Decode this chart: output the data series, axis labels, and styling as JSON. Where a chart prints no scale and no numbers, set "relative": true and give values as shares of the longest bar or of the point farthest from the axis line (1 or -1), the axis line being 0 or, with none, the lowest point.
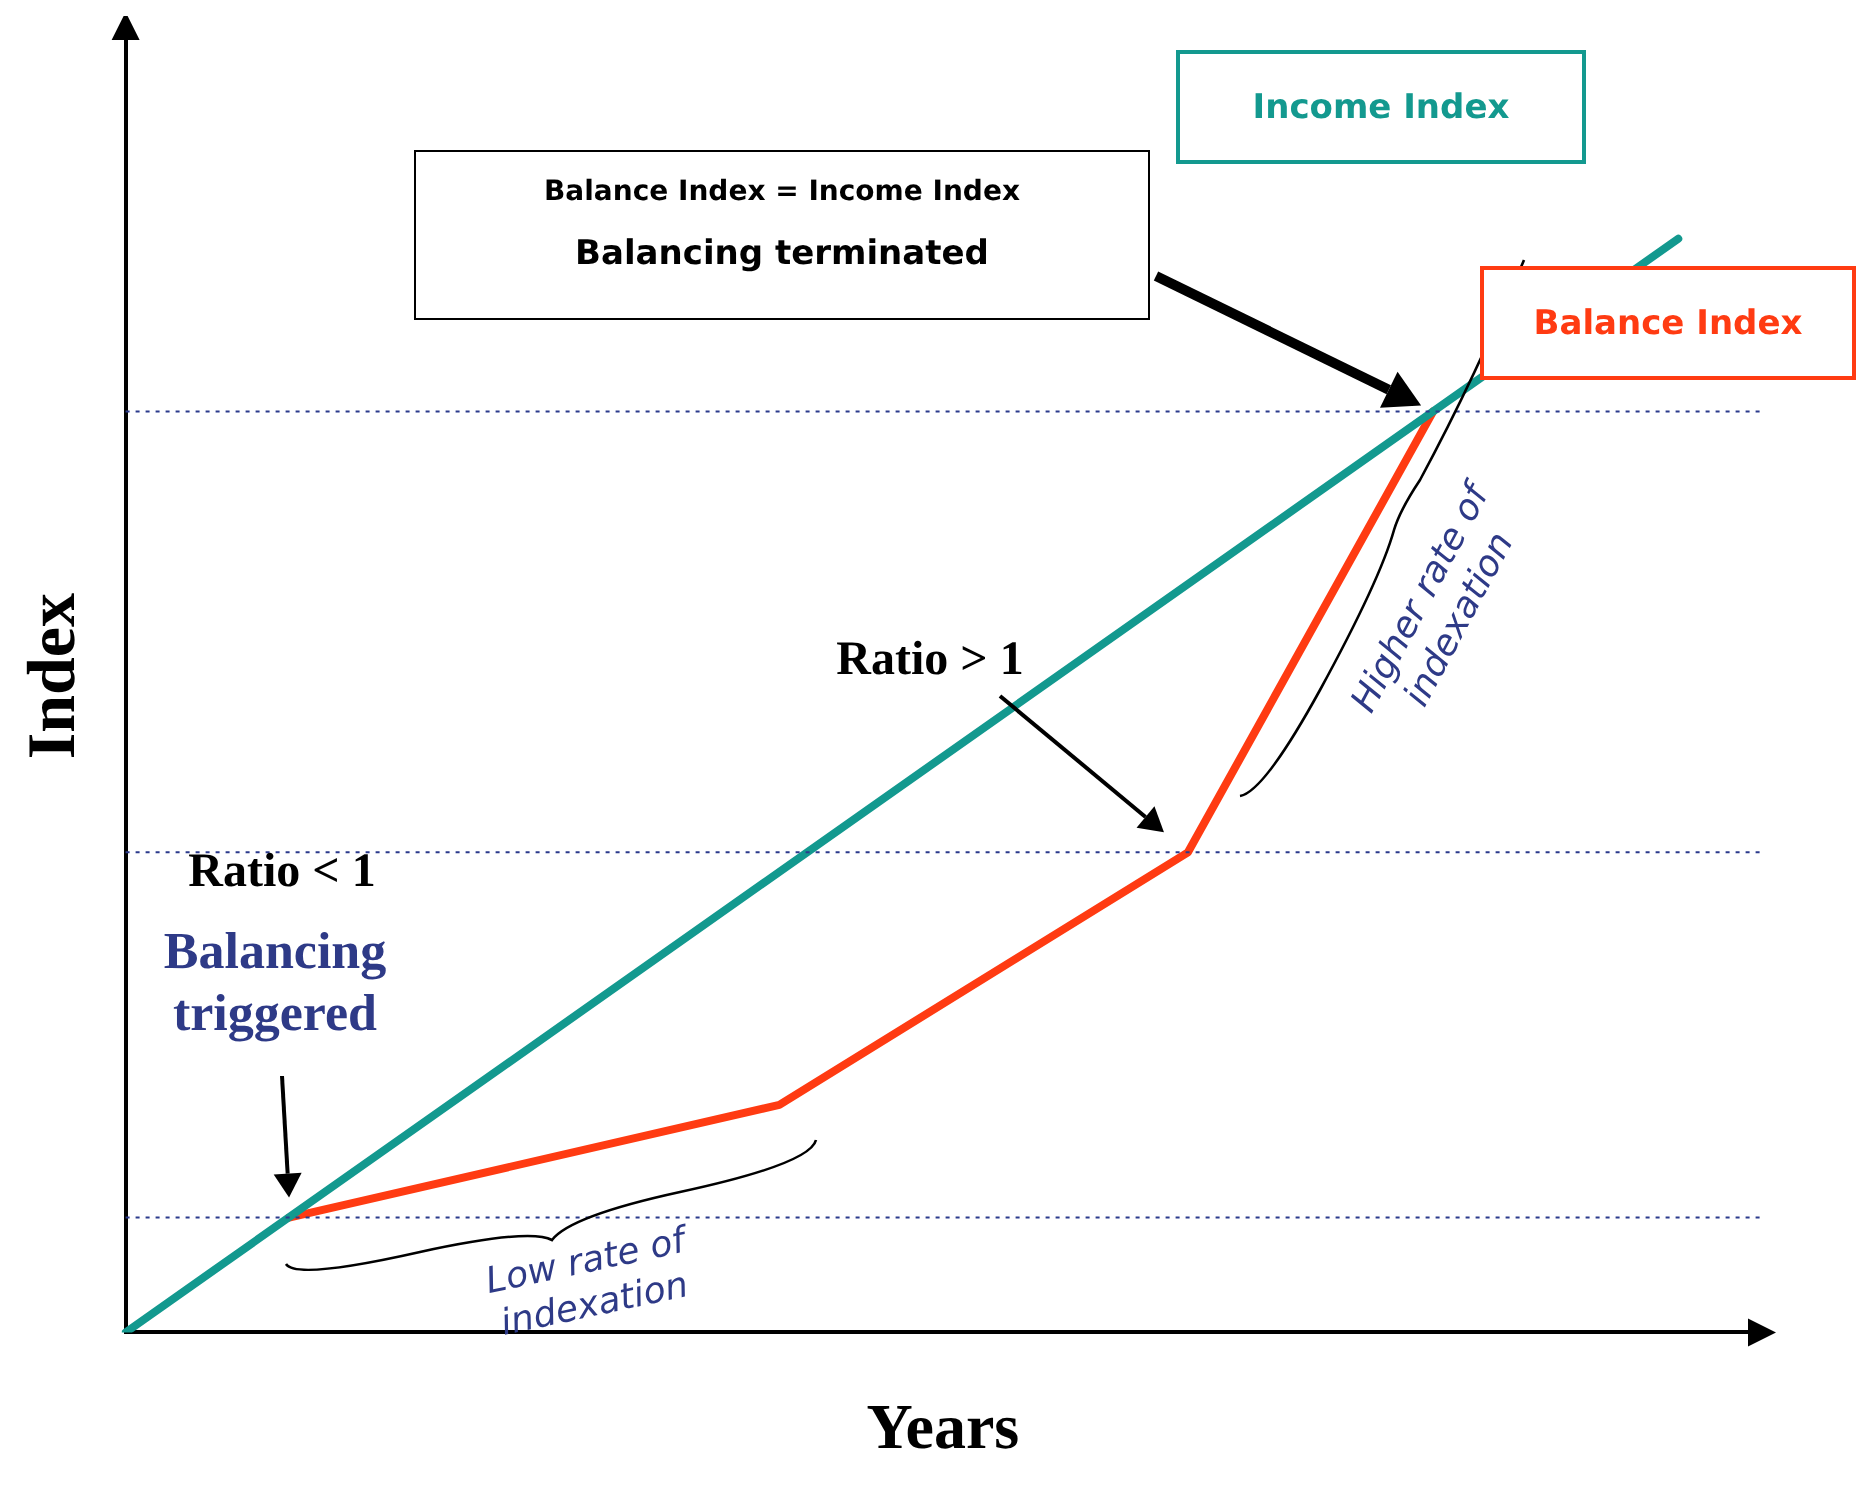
{
  "chart_data": {
    "type": "line",
    "relative": true,
    "xlabel": "Years",
    "ylabel": "Index",
    "categories": [
      null,
      null,
      null,
      null,
      null,
      null,
      null,
      null,
      null,
      null,
      null,
      null,
      null,
      null,
      null,
      null,
      null,
      null,
      null,
      null,
      null
    ],
    "series": [
      {
        "name": "Income Index",
        "color": "#13998f",
        "values": [
          0,
          null,
          null,
          null,
          null,
          null,
          null,
          null,
          null,
          null,
          null,
          null,
          null,
          null,
          null,
          null,
          null,
          null,
          null,
          1,
          null
        ]
      },
      {
        "name": "Balance Index",
        "color": "#ff3b12",
        "values": [
          null,
          null,
          0.105,
          null,
          null,
          null,
          null,
          null,
          0.208,
          null,
          null,
          null,
          null,
          0.439,
          null,
          null,
          0.842,
          null,
          null,
          null,
          null
        ]
      }
    ],
    "ref_lines": [
      {
        "axis": "y",
        "value": 0.105,
        "color": "#2b3a8c",
        "line_style": "dotted"
      },
      {
        "axis": "y",
        "value": 0.439,
        "color": "#2b3a8c",
        "line_style": "dotted"
      },
      {
        "axis": "y",
        "value": 0.842,
        "color": "#2b3a8c",
        "line_style": "dotted"
      }
    ],
    "annotations": [
      "Balance Index = Income Index",
      "Balancing terminated",
      "Ratio < 1",
      "Balancing triggered",
      "Ratio > 1",
      "Low rate of indexation",
      "Higher rate of indexation"
    ]
  }
}
